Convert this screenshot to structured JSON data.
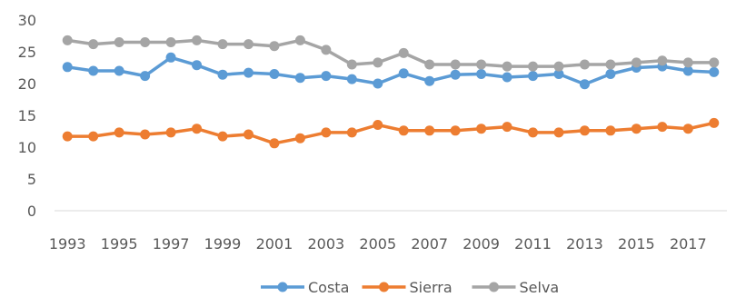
{
  "chart_data": {
    "type": "line",
    "title": "",
    "xlabel": "",
    "ylabel": "",
    "x": [
      1993,
      1994,
      1995,
      1996,
      1997,
      1998,
      1999,
      2000,
      2001,
      2002,
      2003,
      2004,
      2005,
      2006,
      2007,
      2008,
      2009,
      2010,
      2011,
      2012,
      2013,
      2014,
      2015,
      2016,
      2017,
      2018
    ],
    "x_tick_labels": [
      "1993",
      "1995",
      "1997",
      "1999",
      "2001",
      "2003",
      "2005",
      "2007",
      "2009",
      "2011",
      "2013",
      "2015",
      "2017"
    ],
    "ylim": [
      0,
      30
    ],
    "y_ticks": [
      0,
      5,
      10,
      15,
      20,
      25,
      30
    ],
    "grid": false,
    "legend_position": "bottom",
    "series": [
      {
        "name": "Costa",
        "color": "#5B9BD5",
        "values": [
          22.6,
          22.0,
          22.0,
          21.2,
          24.1,
          22.9,
          21.4,
          21.7,
          21.5,
          20.9,
          21.2,
          20.7,
          20.0,
          21.6,
          20.4,
          21.4,
          21.5,
          21.0,
          21.2,
          21.5,
          19.9,
          21.5,
          22.5,
          22.7,
          22.0,
          21.8
        ]
      },
      {
        "name": "Sierra",
        "color": "#ED7D31",
        "values": [
          11.7,
          11.7,
          12.3,
          12.0,
          12.3,
          12.9,
          11.7,
          12.0,
          10.6,
          11.4,
          12.3,
          12.3,
          13.5,
          12.6,
          12.6,
          12.6,
          12.9,
          13.2,
          12.3,
          12.3,
          12.6,
          12.6,
          12.9,
          13.2,
          12.9,
          13.8
        ]
      },
      {
        "name": "Selva",
        "color": "#A5A5A5",
        "values": [
          26.8,
          26.2,
          26.5,
          26.5,
          26.5,
          26.8,
          26.2,
          26.2,
          25.9,
          26.8,
          25.3,
          23.0,
          23.3,
          24.8,
          23.0,
          23.0,
          23.0,
          22.7,
          22.7,
          22.7,
          23.0,
          23.0,
          23.3,
          23.6,
          23.3,
          23.3
        ]
      }
    ]
  }
}
